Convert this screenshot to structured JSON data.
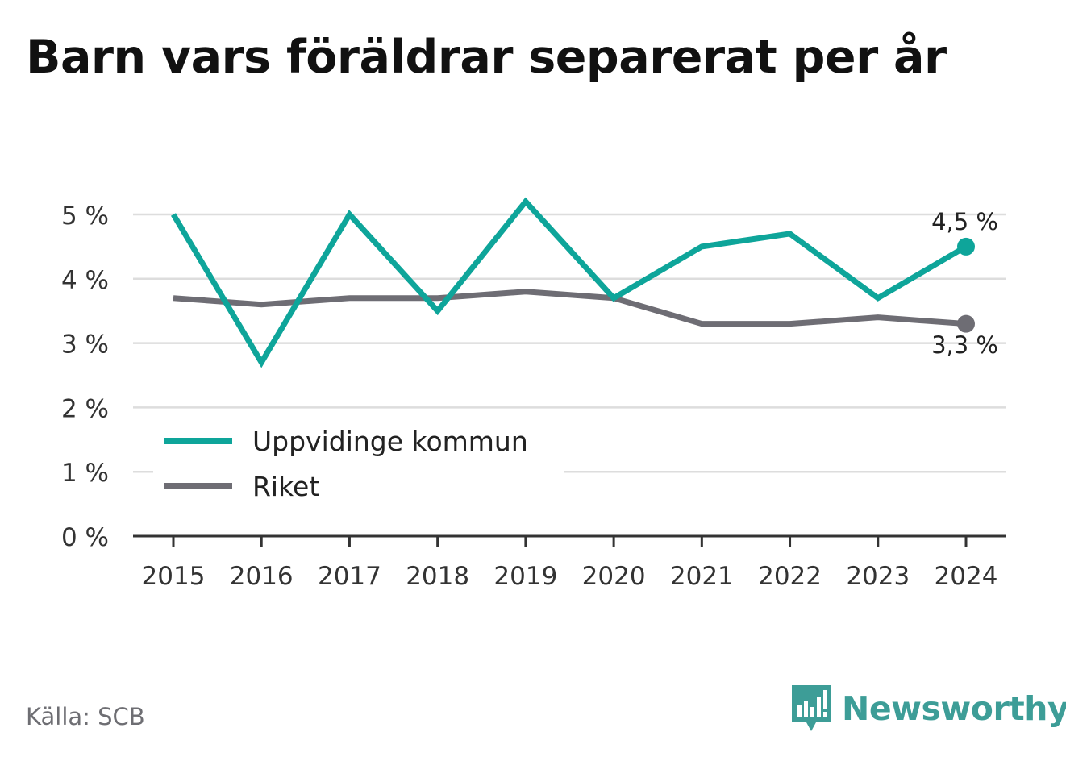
{
  "title": "Barn vars föräldrar separerat per år",
  "source": "Källa: SCB",
  "brand": {
    "name": "Newsworthy",
    "icon": "newsworthy-logo-icon"
  },
  "colors": {
    "series_1": "#0ea59a",
    "series_2": "#6e6d74",
    "grid": "#dddddd",
    "axis": "#333333",
    "brand": "#3d9d97"
  },
  "chart_data": {
    "type": "line",
    "x": [
      "2015",
      "2016",
      "2017",
      "2018",
      "2019",
      "2020",
      "2021",
      "2022",
      "2023",
      "2024"
    ],
    "series": [
      {
        "name": "Uppvidinge kommun",
        "values": [
          5.0,
          2.7,
          5.0,
          3.5,
          5.2,
          3.7,
          4.5,
          4.7,
          3.7,
          4.5
        ],
        "color": "#0ea59a",
        "end_label": "4,5 %"
      },
      {
        "name": "Riket",
        "values": [
          3.7,
          3.6,
          3.7,
          3.7,
          3.8,
          3.7,
          3.3,
          3.3,
          3.4,
          3.3
        ],
        "color": "#6e6d74",
        "end_label": "3,3 %"
      }
    ],
    "yticks": [
      0,
      1,
      2,
      3,
      4,
      5
    ],
    "ytick_labels": [
      "0 %",
      "1 %",
      "2 %",
      "3 %",
      "4 %",
      "5 %"
    ],
    "ylim": [
      0,
      5.2
    ],
    "grid": true,
    "legend_position": "bottom-left"
  }
}
